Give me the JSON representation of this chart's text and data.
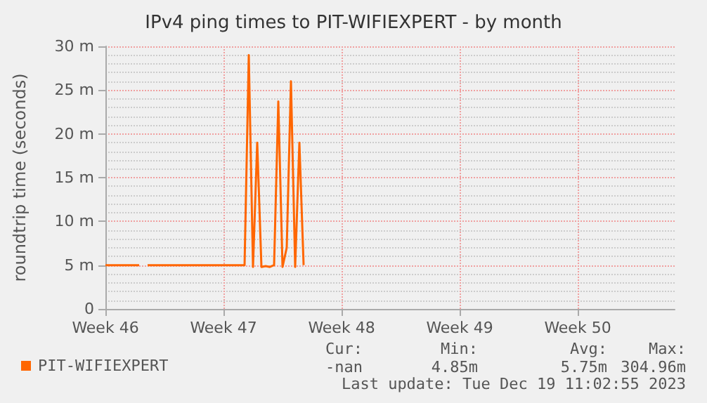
{
  "chart_data": {
    "type": "line",
    "title": "IPv4 ping times to PIT-WIFIEXPERT - by month",
    "ylabel": "roundtrip time (seconds)",
    "categories": [
      "Week 46",
      null,
      null,
      null,
      null,
      null,
      null,
      null,
      null,
      null,
      null,
      null,
      null,
      null,
      null,
      null,
      null,
      null,
      null,
      null,
      null,
      null,
      null,
      null,
      null,
      null,
      null,
      null,
      "Week 47",
      null,
      null,
      null,
      null,
      null,
      null,
      null,
      null,
      null,
      null,
      null,
      null,
      null,
      null,
      null,
      null,
      null,
      null,
      null,
      null,
      null,
      null,
      null,
      null,
      null,
      null,
      null,
      "Week 48",
      null,
      null,
      null,
      null,
      null,
      null,
      null,
      null,
      null,
      null,
      null,
      null,
      null,
      null,
      null,
      null,
      null,
      null,
      null,
      null,
      null,
      null,
      null,
      null,
      null,
      null,
      null,
      "Week 49",
      null,
      null,
      null,
      null,
      null,
      null,
      null,
      null,
      null,
      null,
      null,
      null,
      null,
      null,
      null,
      null,
      null,
      null,
      null,
      null,
      null,
      null,
      null,
      null,
      null,
      null,
      null,
      "Week 50",
      null,
      null,
      null,
      null,
      null,
      null,
      null,
      null,
      null,
      null,
      null,
      null,
      null,
      null,
      null,
      null,
      null,
      null,
      null,
      null,
      null,
      null,
      null
    ],
    "series": [
      {
        "name": "PIT-WIFIEXPERT",
        "color": "#ff6600",
        "values": [
          5,
          5,
          5,
          5,
          5,
          5,
          5,
          5,
          5,
          null,
          5,
          5,
          5,
          5,
          5,
          5,
          5,
          5,
          5,
          5,
          5,
          5,
          5,
          5,
          5,
          5,
          5,
          5,
          5,
          5,
          5,
          5,
          5,
          5,
          29,
          4.8,
          19,
          4.8,
          4.9,
          4.8,
          5,
          23.7,
          4.8,
          7,
          26,
          4.8,
          19,
          5,
          null,
          null,
          null,
          null,
          null,
          null,
          null,
          null,
          null,
          null,
          null,
          null,
          null,
          null,
          null,
          null,
          null,
          null,
          null,
          null,
          null,
          null,
          null,
          null,
          null,
          null,
          null,
          null,
          null,
          null,
          null,
          null,
          null,
          null,
          null,
          null,
          null,
          null,
          null,
          null,
          null,
          null,
          null,
          null,
          null,
          null,
          null,
          null,
          null,
          null,
          null,
          null,
          null,
          null,
          null,
          null,
          null,
          null,
          null,
          null,
          null,
          null,
          null,
          null,
          null,
          null,
          null,
          null,
          null,
          null,
          null,
          null,
          null,
          null,
          null,
          null,
          null,
          null,
          null,
          null,
          null,
          null,
          null,
          null,
          null,
          null,
          null,
          null
        ]
      }
    ],
    "ylim": [
      0,
      30
    ],
    "yticks": [
      0,
      {
        "value": 5,
        "label": "5 m"
      },
      {
        "value": 10,
        "label": "10 m"
      },
      {
        "value": 15,
        "label": "15 m"
      },
      {
        "value": 20,
        "label": "20 m"
      },
      {
        "value": 25,
        "label": "25 m"
      },
      {
        "value": 30,
        "label": "30 m"
      }
    ],
    "grid": true,
    "legend": "bottom left",
    "marker": "none",
    "line_style": "solid",
    "annotations": [
      "Cur:",
      "Min:",
      "Avg:",
      "Max:",
      "-nan",
      "4.85m",
      "5.75m",
      "304.96m",
      "Last update: Tue Dec 19 11:02:55 2023"
    ]
  }
}
